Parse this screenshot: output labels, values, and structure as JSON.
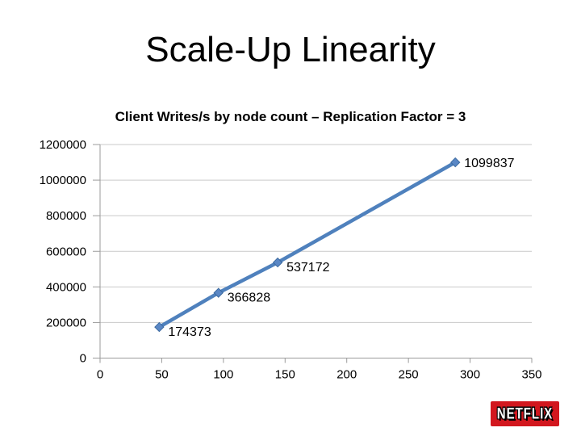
{
  "slide": {
    "title": "Scale-Up Linearity",
    "logo": {
      "text": "NETFLIX",
      "bg_color": "#D2171E",
      "text_color": "#FFFFFF"
    }
  },
  "chart_data": {
    "type": "line",
    "title": "Client Writes/s by node count – Replication Factor = 3",
    "xlabel": "",
    "ylabel": "",
    "x": [
      48,
      96,
      144,
      288
    ],
    "values": [
      174373,
      366828,
      537172,
      1099837
    ],
    "data_labels": [
      "174373",
      "366828",
      "537172",
      "1099837"
    ],
    "xlim": [
      0,
      350
    ],
    "ylim": [
      0,
      1200000
    ],
    "x_ticks": [
      0,
      50,
      100,
      150,
      200,
      250,
      300,
      350
    ],
    "x_tick_labels": [
      "0",
      "50",
      "100",
      "150",
      "200",
      "250",
      "300",
      "350"
    ],
    "y_ticks": [
      0,
      200000,
      400000,
      600000,
      800000,
      1000000,
      1200000
    ],
    "y_tick_labels": [
      "0",
      "200000",
      "400000",
      "600000",
      "800000",
      "1000000",
      "1200000"
    ],
    "grid": "horizontal",
    "legend": "none",
    "line_color": "#4F81BD",
    "marker": "diamond",
    "marker_fill": "#5A87C5",
    "marker_edge": "#3C6AA0",
    "grid_color": "#C9C9C9",
    "axis_color": "#9B9B9B"
  }
}
